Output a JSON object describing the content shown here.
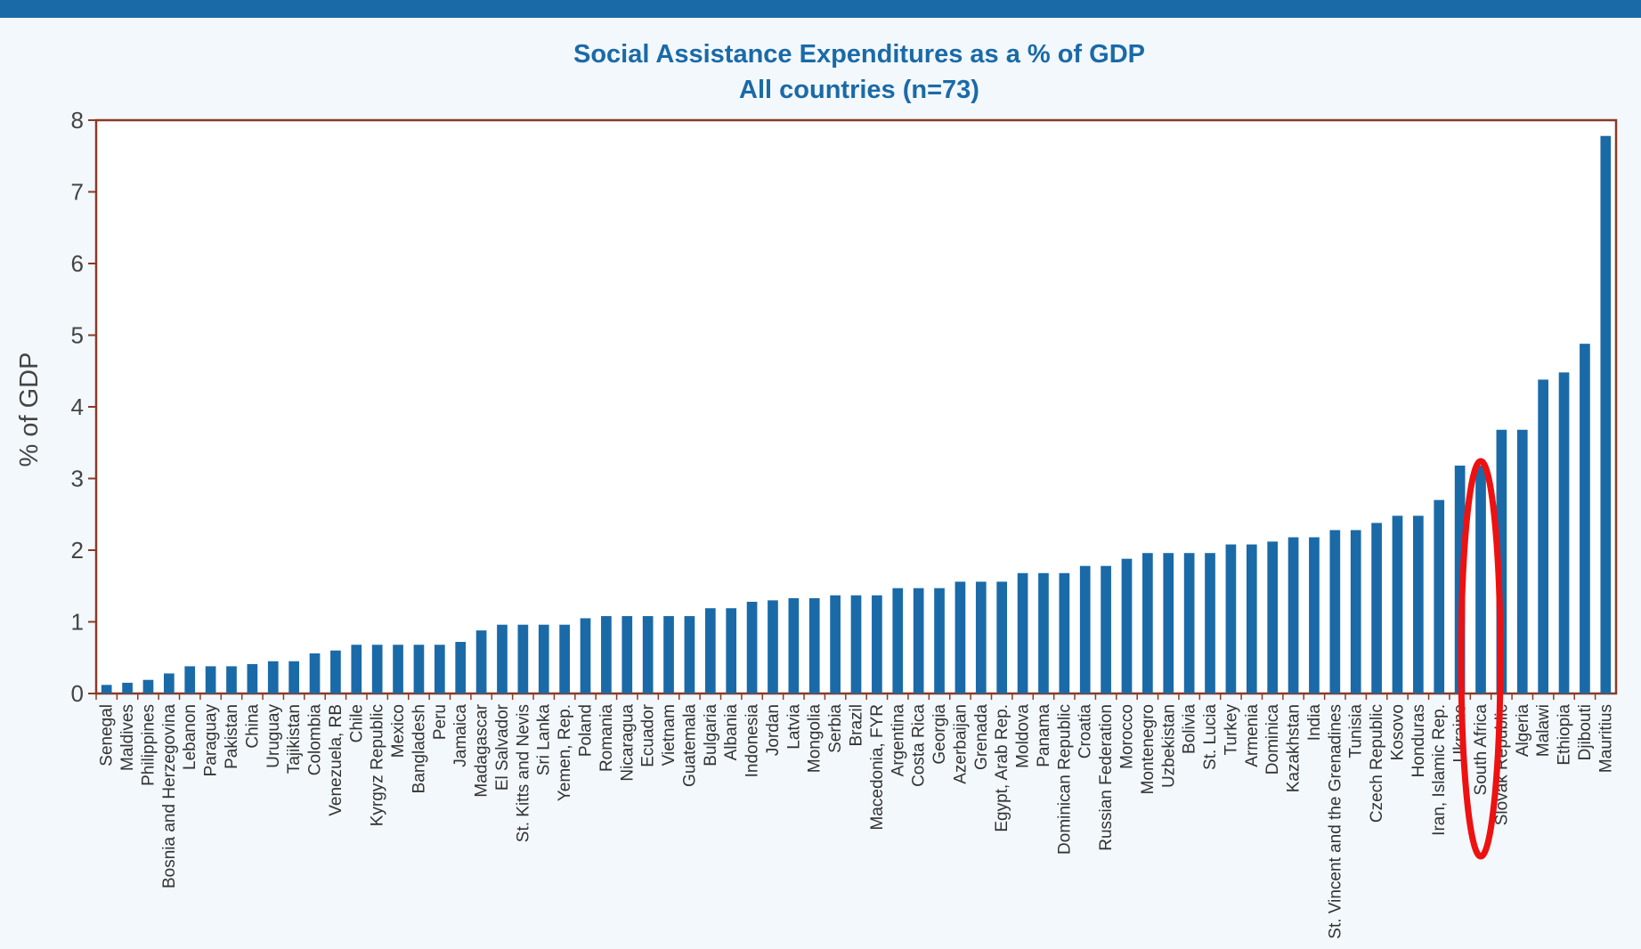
{
  "colors": {
    "bar": "#1a6aa8",
    "axis": "#8b3a26",
    "title": "#1a6aa8",
    "highlight_ring": "#ee1111",
    "background": "#f3f8fc"
  },
  "chart_data": {
    "type": "bar",
    "title": "Social Assistance Expenditures as a % of GDP",
    "subtitle": "All countries (n=73)",
    "xlabel": "",
    "ylabel": "% of GDP",
    "ylim": [
      0,
      8
    ],
    "yticks": [
      "0",
      "1",
      "2",
      "3",
      "4",
      "5",
      "6",
      "7",
      "8"
    ],
    "grid": false,
    "legend": "none",
    "highlighted_category": "South Africa",
    "categories": [
      "Senegal",
      "Maldives",
      "Philippines",
      "Bosnia and Herzegovina",
      "Lebanon",
      "Paraguay",
      "Pakistan",
      "China",
      "Uruguay",
      "Tajikistan",
      "Colombia",
      "Venezuela, RB",
      "Chile",
      "Kyrgyz Republic",
      "Mexico",
      "Bangladesh",
      "Peru",
      "Jamaica",
      "Madagascar",
      "El Salvador",
      "St. Kitts and Nevis",
      "Sri Lanka",
      "Yemen, Rep.",
      "Poland",
      "Romania",
      "Nicaragua",
      "Ecuador",
      "Vietnam",
      "Guatemala",
      "Bulgaria",
      "Albania",
      "Indonesia",
      "Jordan",
      "Latvia",
      "Mongolia",
      "Serbia",
      "Brazil",
      "Macedonia, FYR",
      "Argentina",
      "Costa Rica",
      "Georgia",
      "Azerbaijan",
      "Grenada",
      "Egypt, Arab Rep.",
      "Moldova",
      "Panama",
      "Dominican Republic",
      "Croatia",
      "Russian Federation",
      "Morocco",
      "Montenegro",
      "Uzbekistan",
      "Bolivia",
      "St. Lucia",
      "Turkey",
      "Armenia",
      "Dominica",
      "Kazakhstan",
      "India",
      "St. Vincent and the Grenadines",
      "Tunisia",
      "Czech Republic",
      "Kosovo",
      "Honduras",
      "Iran, Islamic Rep.",
      "Ukraine",
      "South Africa",
      "Slovak Republic",
      "Algeria",
      "Malawi",
      "Ethiopia",
      "Djibouti",
      "Mauritius"
    ],
    "values": [
      0.12,
      0.15,
      0.19,
      0.28,
      0.38,
      0.38,
      0.38,
      0.41,
      0.45,
      0.45,
      0.56,
      0.6,
      0.68,
      0.68,
      0.68,
      0.68,
      0.68,
      0.72,
      0.88,
      0.96,
      0.96,
      0.96,
      0.96,
      1.05,
      1.08,
      1.08,
      1.08,
      1.08,
      1.08,
      1.19,
      1.19,
      1.28,
      1.3,
      1.33,
      1.33,
      1.37,
      1.37,
      1.37,
      1.47,
      1.47,
      1.47,
      1.56,
      1.56,
      1.56,
      1.68,
      1.68,
      1.68,
      1.78,
      1.78,
      1.88,
      1.96,
      1.96,
      1.96,
      1.96,
      2.08,
      2.08,
      2.12,
      2.18,
      2.18,
      2.28,
      2.28,
      2.38,
      2.48,
      2.48,
      2.7,
      3.18,
      3.18,
      3.68,
      3.68,
      4.38,
      4.48,
      4.88,
      7.78
    ]
  }
}
